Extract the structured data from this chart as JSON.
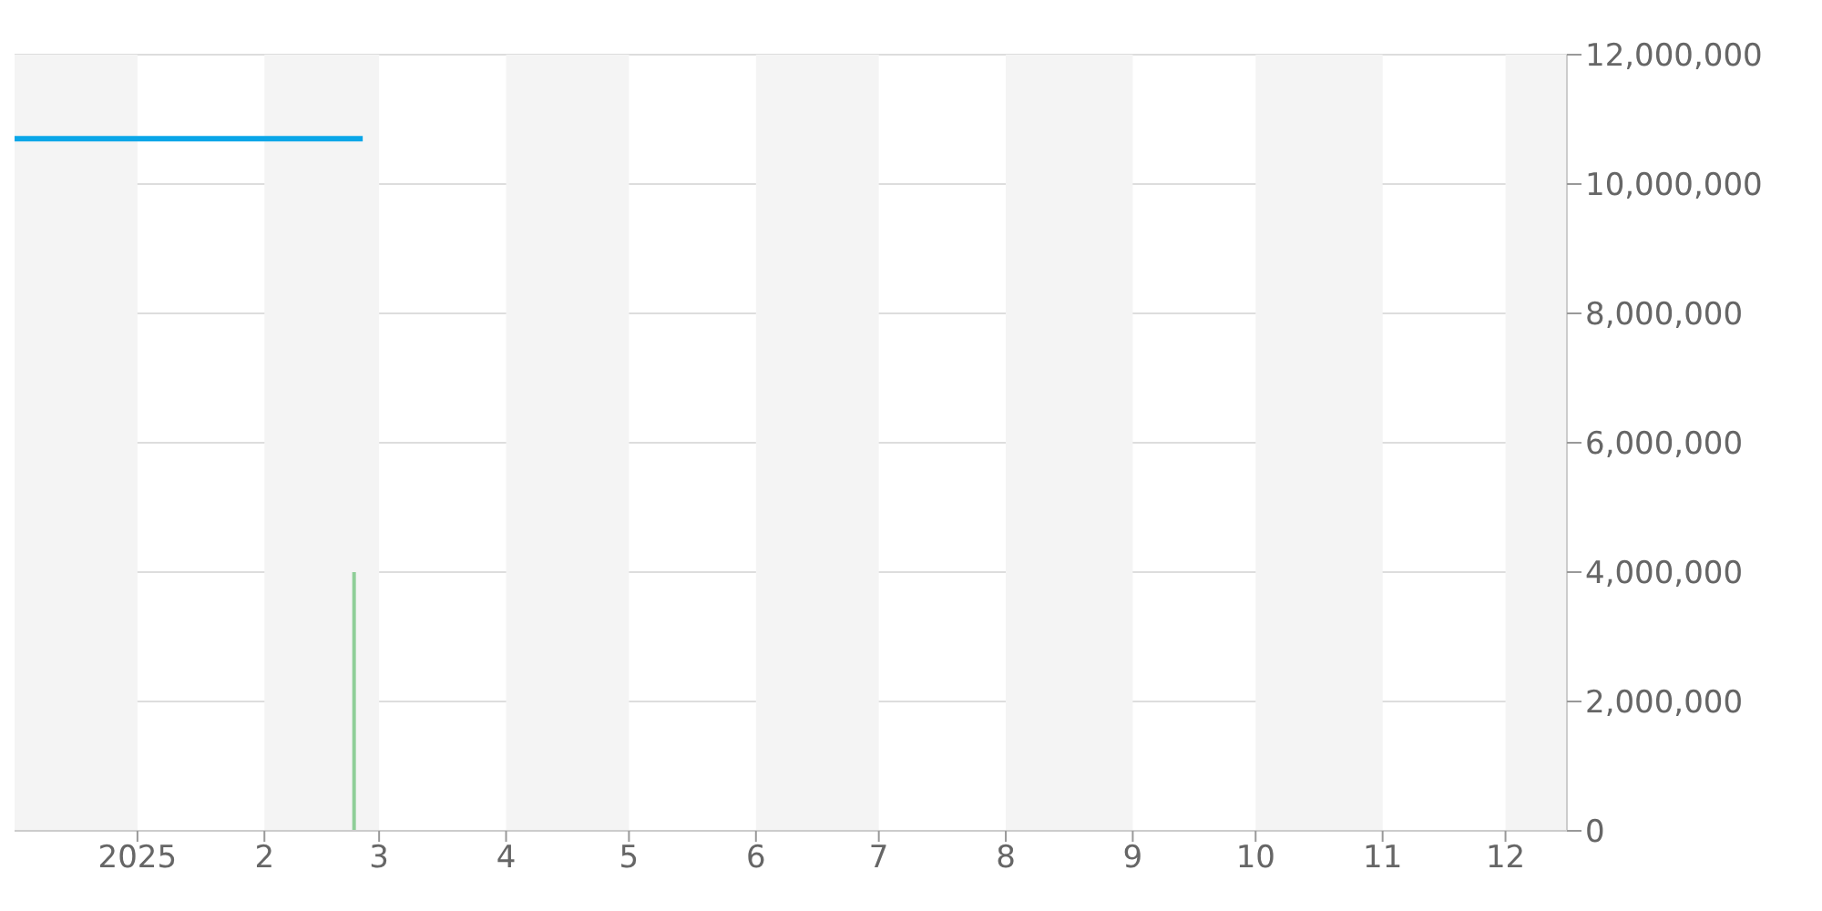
{
  "chart_data": {
    "type": "line",
    "series": [
      {
        "color": "#0aa6e8",
        "x": [
          "2024-12-02",
          "2025-02-25"
        ],
        "values": [
          10700000,
          10700000
        ]
      },
      {
        "type": "bar",
        "color": "#8fce98",
        "x": [
          "2025-02-23"
        ],
        "values": [
          4000000
        ]
      }
    ],
    "xlim": [
      "2024-12-02",
      "2025-12-16"
    ],
    "xticks": [
      {
        "value": "2025-01-01",
        "label": "2025"
      },
      {
        "value": "2025-02-01",
        "label": "2"
      },
      {
        "value": "2025-03-01",
        "label": "3"
      },
      {
        "value": "2025-04-01",
        "label": "4"
      },
      {
        "value": "2025-05-01",
        "label": "5"
      },
      {
        "value": "2025-06-01",
        "label": "6"
      },
      {
        "value": "2025-07-01",
        "label": "7"
      },
      {
        "value": "2025-08-01",
        "label": "8"
      },
      {
        "value": "2025-09-01",
        "label": "9"
      },
      {
        "value": "2025-10-01",
        "label": "10"
      },
      {
        "value": "2025-11-01",
        "label": "11"
      },
      {
        "value": "2025-12-01",
        "label": "12"
      }
    ],
    "ylim": [
      0,
      12000000
    ],
    "yticks": [
      {
        "value": 0,
        "label": "0"
      },
      {
        "value": 2000000,
        "label": "2,000,000"
      },
      {
        "value": 4000000,
        "label": "4,000,000"
      },
      {
        "value": 6000000,
        "label": "6,000,000"
      },
      {
        "value": 8000000,
        "label": "8,000,000"
      },
      {
        "value": 10000000,
        "label": "10,000,000"
      },
      {
        "value": 12000000,
        "label": "12,000,000"
      }
    ],
    "grid": "y",
    "legend": false,
    "marker": "none",
    "line_style": "solid",
    "bands": [
      {
        "axis": "x",
        "from": "2024-12-02",
        "to": "2025-01-01",
        "color": "#f4f4f4"
      },
      {
        "axis": "x",
        "from": "2025-02-01",
        "to": "2025-03-01",
        "color": "#f4f4f4"
      },
      {
        "axis": "x",
        "from": "2025-04-01",
        "to": "2025-05-01",
        "color": "#f4f4f4"
      },
      {
        "axis": "x",
        "from": "2025-06-01",
        "to": "2025-07-01",
        "color": "#f4f4f4"
      },
      {
        "axis": "x",
        "from": "2025-08-01",
        "to": "2025-09-01",
        "color": "#f4f4f4"
      },
      {
        "axis": "x",
        "from": "2025-10-01",
        "to": "2025-11-01",
        "color": "#f4f4f4"
      },
      {
        "axis": "x",
        "from": "2025-12-01",
        "to": "2025-12-16",
        "color": "#f4f4f4"
      }
    ]
  }
}
